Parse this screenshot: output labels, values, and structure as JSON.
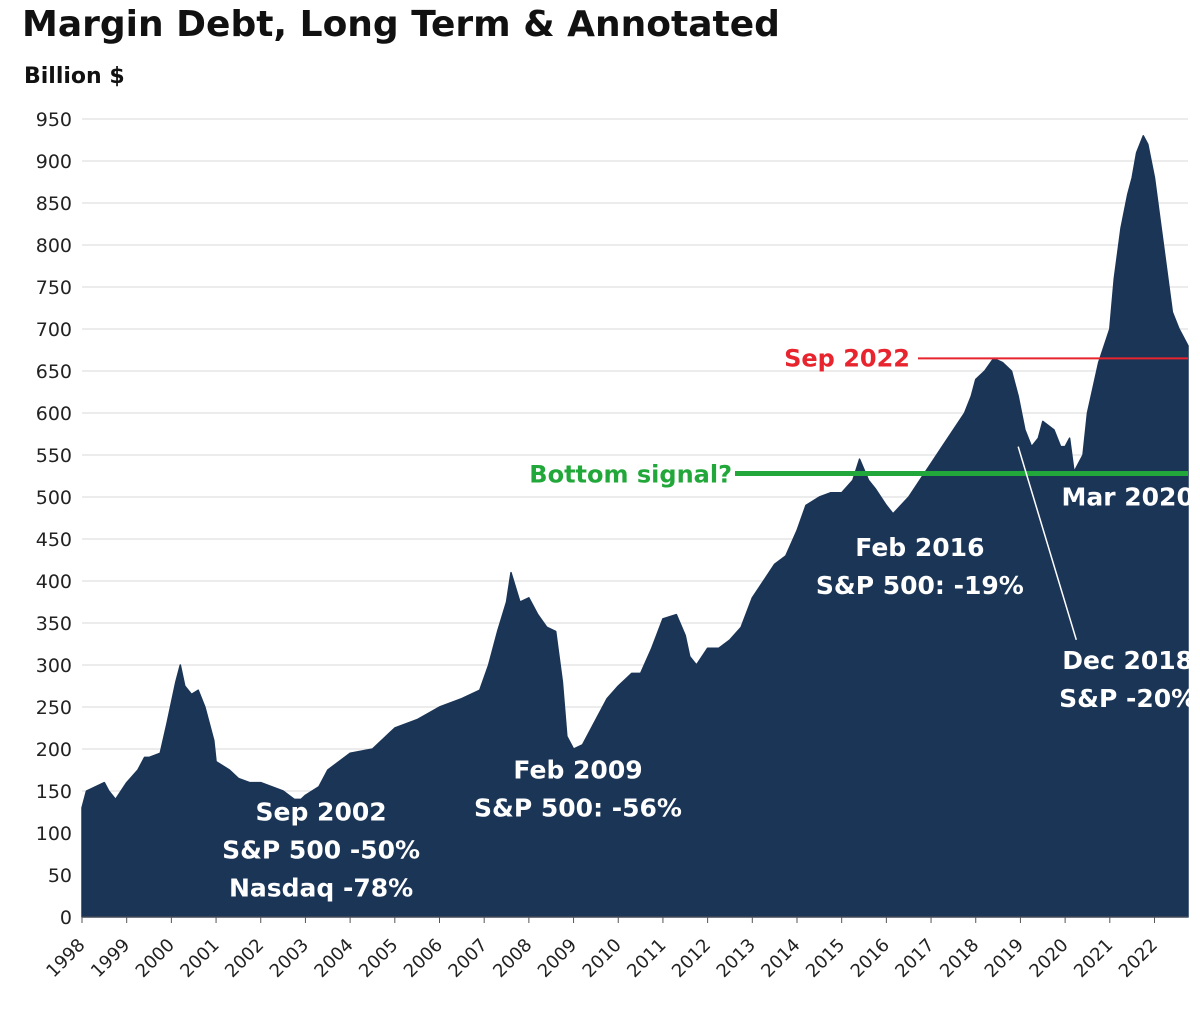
{
  "title": "Margin Debt, Long Term & Annotated",
  "subtitle": "Billion $",
  "colors": {
    "area": "#1b3557",
    "grid": "#d9d9d9",
    "red_line": "#e8242e",
    "green_line": "#22a83a",
    "label_white": "#ffffff",
    "label_dark": "#1b3557"
  },
  "chart_data": {
    "type": "area",
    "title": "Margin Debt, Long Term & Annotated",
    "ylabel": "Billion $",
    "xlabel": "",
    "ylim": [
      0,
      950
    ],
    "yticks": [
      0,
      50,
      100,
      150,
      200,
      250,
      300,
      350,
      400,
      450,
      500,
      550,
      600,
      650,
      700,
      750,
      800,
      850,
      900,
      950
    ],
    "xlim": [
      1998.0,
      2022.75
    ],
    "xticks": [
      "1998",
      "1999",
      "2000",
      "2001",
      "2002",
      "2003",
      "2004",
      "2005",
      "2006",
      "2007",
      "2008",
      "2009",
      "2010",
      "2011",
      "2012",
      "2013",
      "2014",
      "2015",
      "2016",
      "2017",
      "2018",
      "2019",
      "2020",
      "2021",
      "2022"
    ],
    "grid": true,
    "series": [
      {
        "x": [
          1998.0,
          1998.1,
          1998.3,
          1998.5,
          1998.6,
          1998.75,
          1999.0,
          1999.25,
          1999.4,
          1999.5,
          1999.75,
          1999.9,
          2000.1,
          2000.2,
          2000.3,
          2000.45,
          2000.6,
          2000.75,
          2000.95,
          2001.0,
          2001.3,
          2001.5,
          2001.75,
          2002.0,
          2002.5,
          2002.75,
          2002.9,
          2003.0,
          2003.3,
          2003.5,
          2003.75,
          2004.0,
          2004.5,
          2004.9,
          2005.0,
          2005.5,
          2006.0,
          2006.5,
          2006.9,
          2007.1,
          2007.3,
          2007.5,
          2007.6,
          2007.8,
          2008.0,
          2008.2,
          2008.4,
          2008.6,
          2008.75,
          2008.85,
          2009.0,
          2009.2,
          2009.5,
          2009.75,
          2010.0,
          2010.3,
          2010.5,
          2010.75,
          2011.0,
          2011.3,
          2011.5,
          2011.6,
          2011.75,
          2012.0,
          2012.25,
          2012.5,
          2012.75,
          2013.0,
          2013.25,
          2013.5,
          2013.75,
          2014.0,
          2014.2,
          2014.5,
          2014.75,
          2015.0,
          2015.25,
          2015.4,
          2015.6,
          2015.75,
          2016.0,
          2016.15,
          2016.5,
          2016.75,
          2017.0,
          2017.25,
          2017.5,
          2017.75,
          2017.9,
          2018.0,
          2018.2,
          2018.4,
          2018.6,
          2018.8,
          2018.95,
          2019.1,
          2019.25,
          2019.4,
          2019.5,
          2019.75,
          2019.9,
          2020.0,
          2020.1,
          2020.2,
          2020.4,
          2020.5,
          2020.75,
          2021.0,
          2021.1,
          2021.25,
          2021.4,
          2021.5,
          2021.6,
          2021.75,
          2021.85,
          2022.0,
          2022.15,
          2022.3,
          2022.4,
          2022.55,
          2022.65,
          2022.75
        ],
        "values": [
          130,
          150,
          155,
          160,
          150,
          140,
          160,
          175,
          190,
          190,
          195,
          230,
          280,
          300,
          275,
          265,
          270,
          250,
          210,
          185,
          175,
          165,
          160,
          160,
          150,
          140,
          140,
          145,
          155,
          175,
          185,
          195,
          200,
          220,
          225,
          235,
          250,
          260,
          270,
          300,
          340,
          375,
          410,
          375,
          380,
          360,
          345,
          340,
          280,
          215,
          200,
          205,
          235,
          260,
          275,
          290,
          290,
          320,
          355,
          360,
          335,
          310,
          300,
          320,
          320,
          330,
          345,
          380,
          400,
          420,
          430,
          460,
          490,
          500,
          505,
          505,
          520,
          545,
          520,
          510,
          490,
          480,
          500,
          520,
          540,
          560,
          580,
          600,
          620,
          640,
          650,
          665,
          660,
          650,
          620,
          580,
          560,
          570,
          590,
          580,
          560,
          560,
          570,
          530,
          550,
          600,
          660,
          700,
          760,
          820,
          860,
          880,
          910,
          930,
          920,
          880,
          820,
          760,
          720,
          700,
          690,
          680
        ]
      }
    ],
    "reference_lines": [
      {
        "label": "Sep 2022",
        "value": 665,
        "color": "#e8242e"
      },
      {
        "label": "Bottom signal?",
        "value": 528,
        "color": "#22a83a"
      }
    ],
    "annotations": [
      {
        "lines": [
          "Sep 2002",
          "S&P 500 -50%",
          "Nasdaq -78%"
        ],
        "x": 2003.35,
        "y": 115
      },
      {
        "lines": [
          "Feb  2009",
          "S&P 500: -56%"
        ],
        "x": 2009.1,
        "y": 165
      },
      {
        "lines": [
          "Feb 2016",
          "S&P 500: -19%"
        ],
        "x": 2016.75,
        "y": 430
      },
      {
        "lines": [
          "Mar 2020"
        ],
        "x": 2021.4,
        "y": 490
      },
      {
        "lines": [
          "Dec 2018",
          "S&P -20%"
        ],
        "x": 2021.4,
        "y": 295
      }
    ],
    "pointer": {
      "from": [
        2018.95,
        560
      ],
      "to": [
        2020.25,
        330
      ]
    }
  }
}
